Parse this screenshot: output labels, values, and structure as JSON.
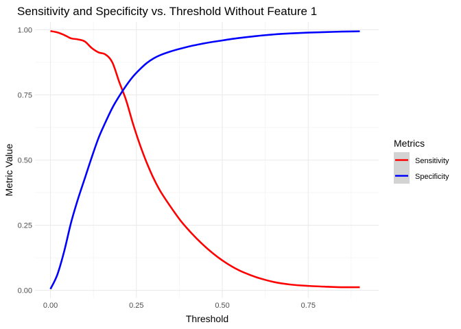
{
  "chart_data": {
    "type": "line",
    "title": "Sensitivity and Specificity vs. Threshold Without Feature 1",
    "xlabel": "Threshold",
    "ylabel": "Metric Value",
    "xlim": [
      -0.045,
      0.955
    ],
    "ylim": [
      -0.03,
      1.03
    ],
    "x_ticks": [
      0.0,
      0.25,
      0.5,
      0.75
    ],
    "x_tick_labels": [
      "0.00",
      "0.25",
      "0.50",
      "0.75"
    ],
    "y_ticks": [
      0.0,
      0.25,
      0.5,
      0.75,
      1.0
    ],
    "y_tick_labels": [
      "0.00",
      "0.25",
      "0.50",
      "0.75",
      "1.00"
    ],
    "grid": true,
    "legend": {
      "title": "Metrics",
      "placement": "right",
      "entries": [
        "Sensitivity",
        "Specificity"
      ]
    },
    "series": [
      {
        "name": "Sensitivity",
        "color": "#ff0000",
        "x": [
          0.0,
          0.02,
          0.04,
          0.06,
          0.08,
          0.1,
          0.12,
          0.14,
          0.16,
          0.18,
          0.2,
          0.22,
          0.24,
          0.26,
          0.28,
          0.3,
          0.32,
          0.35,
          0.38,
          0.41,
          0.44,
          0.47,
          0.5,
          0.53,
          0.56,
          0.6,
          0.65,
          0.7,
          0.75,
          0.8,
          0.85,
          0.9
        ],
        "values": [
          0.995,
          0.99,
          0.98,
          0.967,
          0.963,
          0.955,
          0.93,
          0.913,
          0.905,
          0.875,
          0.8,
          0.73,
          0.64,
          0.56,
          0.49,
          0.43,
          0.38,
          0.32,
          0.265,
          0.22,
          0.18,
          0.145,
          0.115,
          0.09,
          0.07,
          0.05,
          0.032,
          0.022,
          0.017,
          0.014,
          0.012,
          0.012
        ]
      },
      {
        "name": "Specificity",
        "color": "#0000ff",
        "x": [
          0.0,
          0.02,
          0.04,
          0.06,
          0.08,
          0.1,
          0.12,
          0.14,
          0.16,
          0.18,
          0.2,
          0.22,
          0.24,
          0.26,
          0.28,
          0.3,
          0.32,
          0.35,
          0.38,
          0.41,
          0.44,
          0.47,
          0.5,
          0.53,
          0.56,
          0.6,
          0.65,
          0.7,
          0.75,
          0.8,
          0.85,
          0.9
        ],
        "values": [
          0.005,
          0.06,
          0.15,
          0.26,
          0.35,
          0.43,
          0.51,
          0.585,
          0.645,
          0.7,
          0.745,
          0.785,
          0.82,
          0.848,
          0.872,
          0.89,
          0.903,
          0.917,
          0.928,
          0.938,
          0.946,
          0.953,
          0.959,
          0.965,
          0.97,
          0.976,
          0.982,
          0.986,
          0.989,
          0.991,
          0.993,
          0.994
        ]
      }
    ]
  }
}
